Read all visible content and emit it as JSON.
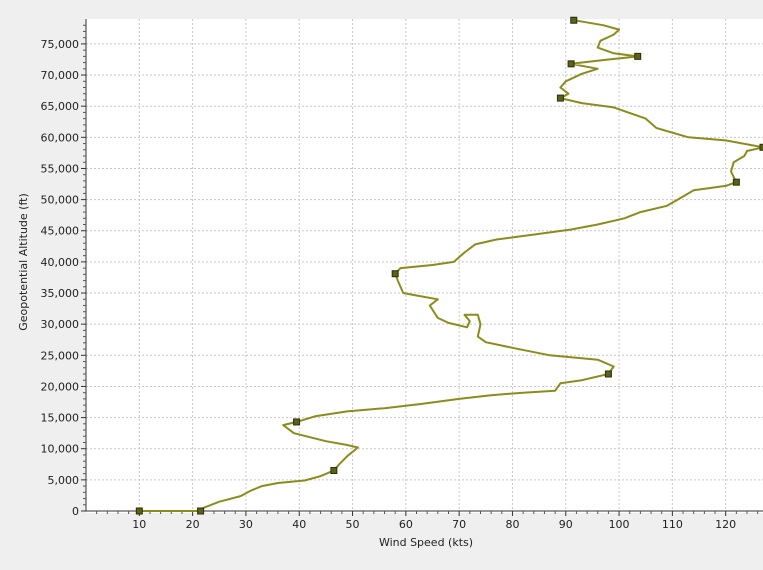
{
  "chart_data": {
    "type": "line",
    "xlabel": "Wind Speed (kts)",
    "ylabel": "Geopotential Altitude (ft)",
    "xlim": [
      0,
      127
    ],
    "ylim": [
      0,
      79000
    ],
    "x_ticks": [
      "10",
      "20",
      "30",
      "40",
      "50",
      "60",
      "70",
      "80",
      "90",
      "100",
      "110",
      "120"
    ],
    "y_ticks": [
      "0",
      "5,000",
      "10,000",
      "15,000",
      "20,000",
      "25,000",
      "30,000",
      "35,000",
      "40,000",
      "45,000",
      "50,000",
      "55,000",
      "60,000",
      "65,000",
      "70,000",
      "75,000"
    ],
    "x_tick_values": [
      10,
      20,
      30,
      40,
      50,
      60,
      70,
      80,
      90,
      100,
      110,
      120
    ],
    "y_tick_values": [
      0,
      5000,
      10000,
      15000,
      20000,
      25000,
      30000,
      35000,
      40000,
      45000,
      50000,
      55000,
      60000,
      65000,
      70000,
      75000
    ],
    "grid": true,
    "legend": "none",
    "series": [
      {
        "color": "#8c8c1c",
        "marker_color": "#5b6116",
        "values": [
          [
            10,
            0
          ],
          [
            21.5,
            0
          ],
          [
            22,
            500
          ],
          [
            25,
            1500
          ],
          [
            29,
            2400
          ],
          [
            31,
            3300
          ],
          [
            33,
            4000
          ],
          [
            36,
            4500
          ],
          [
            41,
            4900
          ],
          [
            44,
            5600
          ],
          [
            46.5,
            6500
          ],
          [
            47.5,
            7500
          ],
          [
            49,
            8800
          ],
          [
            51,
            10200
          ],
          [
            49,
            10600
          ],
          [
            45,
            11200
          ],
          [
            39,
            12500
          ],
          [
            37,
            13800
          ],
          [
            39.5,
            14300
          ],
          [
            43,
            15200
          ],
          [
            49,
            16000
          ],
          [
            56,
            16500
          ],
          [
            63,
            17200
          ],
          [
            70,
            18000
          ],
          [
            76,
            18600
          ],
          [
            82,
            19000
          ],
          [
            88,
            19300
          ],
          [
            89,
            20500
          ],
          [
            93,
            21000
          ],
          [
            98,
            22000
          ],
          [
            99,
            23200
          ],
          [
            96,
            24300
          ],
          [
            87,
            25000
          ],
          [
            80,
            26200
          ],
          [
            75,
            27100
          ],
          [
            73.5,
            28000
          ],
          [
            74,
            30000
          ],
          [
            73.5,
            31500
          ],
          [
            71,
            31500
          ],
          [
            72,
            30500
          ],
          [
            71.5,
            29500
          ],
          [
            68,
            30200
          ],
          [
            66,
            31000
          ],
          [
            64.5,
            33000
          ],
          [
            66,
            34000
          ],
          [
            62,
            34600
          ],
          [
            59.5,
            35000
          ],
          [
            58.5,
            37000
          ],
          [
            58,
            38100
          ],
          [
            59,
            39000
          ],
          [
            65,
            39500
          ],
          [
            69,
            40000
          ],
          [
            71,
            41500
          ],
          [
            73,
            42800
          ],
          [
            77,
            43600
          ],
          [
            85,
            44500
          ],
          [
            91,
            45200
          ],
          [
            96,
            46000
          ],
          [
            101,
            47000
          ],
          [
            104,
            48000
          ],
          [
            109,
            49000
          ],
          [
            111,
            50000
          ],
          [
            114,
            51500
          ],
          [
            120,
            52200
          ],
          [
            122,
            52800
          ],
          [
            121,
            54500
          ],
          [
            121.5,
            56000
          ],
          [
            123.5,
            57000
          ],
          [
            124,
            57800
          ],
          [
            127,
            58400
          ],
          [
            120,
            59500
          ],
          [
            113,
            60000
          ],
          [
            107,
            61500
          ],
          [
            105,
            63000
          ],
          [
            99,
            64800
          ],
          [
            93,
            65500
          ],
          [
            89,
            66300
          ],
          [
            90.5,
            67000
          ],
          [
            89,
            68000
          ],
          [
            90,
            69000
          ],
          [
            93,
            70200
          ],
          [
            96,
            71000
          ],
          [
            91,
            71800
          ],
          [
            98,
            72500
          ],
          [
            103.5,
            73000
          ],
          [
            99,
            73500
          ],
          [
            96,
            74400
          ],
          [
            96.5,
            75500
          ],
          [
            99,
            76500
          ],
          [
            100,
            77300
          ],
          [
            97,
            78000
          ],
          [
            91.5,
            78800
          ]
        ],
        "markers": [
          [
            10,
            0
          ],
          [
            21.5,
            0
          ],
          [
            46.5,
            6500
          ],
          [
            39.5,
            14300
          ],
          [
            98,
            22000
          ],
          [
            58,
            38100
          ],
          [
            122,
            52800
          ],
          [
            127,
            58400
          ],
          [
            89,
            66300
          ],
          [
            91,
            71800
          ],
          [
            103.5,
            73000
          ],
          [
            91.5,
            78800
          ]
        ]
      }
    ]
  }
}
